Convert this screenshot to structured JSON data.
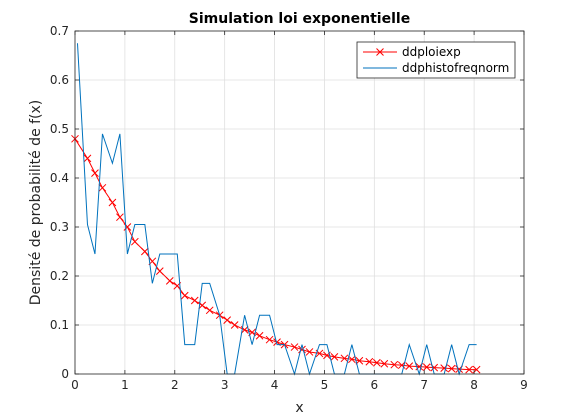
{
  "chart_data": {
    "type": "line",
    "title": "Simulation loi exponentielle",
    "xlabel": "x",
    "ylabel": "Densité de probabilité de f(x)",
    "xlim": [
      0,
      9
    ],
    "ylim": [
      0,
      0.7
    ],
    "xticks": [
      0,
      1,
      2,
      3,
      4,
      5,
      6,
      7,
      8,
      9
    ],
    "yticks": [
      0,
      0.1,
      0.2,
      0.3,
      0.4,
      0.5,
      0.6,
      0.7
    ],
    "grid": true,
    "legend_position": "top-right",
    "series": [
      {
        "name": "ddploiexp",
        "color": "#ff0000",
        "marker": "x",
        "x": [
          0,
          0.25,
          0.4,
          0.55,
          0.75,
          0.9,
          1.05,
          1.2,
          1.4,
          1.55,
          1.7,
          1.9,
          2.05,
          2.2,
          2.4,
          2.55,
          2.7,
          2.9,
          3.05,
          3.2,
          3.4,
          3.55,
          3.7,
          3.9,
          4.05,
          4.2,
          4.4,
          4.55,
          4.7,
          4.9,
          5.05,
          5.2,
          5.4,
          5.55,
          5.7,
          5.9,
          6.05,
          6.2,
          6.4,
          6.55,
          6.7,
          6.9,
          7.05,
          7.2,
          7.4,
          7.55,
          7.7,
          7.9,
          8.05
        ],
        "y": [
          0.48,
          0.44,
          0.41,
          0.38,
          0.35,
          0.32,
          0.3,
          0.27,
          0.25,
          0.23,
          0.21,
          0.19,
          0.18,
          0.16,
          0.15,
          0.14,
          0.13,
          0.12,
          0.11,
          0.1,
          0.09,
          0.085,
          0.078,
          0.07,
          0.065,
          0.06,
          0.055,
          0.05,
          0.045,
          0.042,
          0.038,
          0.035,
          0.032,
          0.03,
          0.027,
          0.025,
          0.023,
          0.021,
          0.019,
          0.018,
          0.016,
          0.015,
          0.014,
          0.013,
          0.012,
          0.011,
          0.01,
          0.009,
          0.009
        ]
      },
      {
        "name": "ddphistofreqnorm",
        "color": "#0072bd",
        "marker": "none",
        "x": [
          0.05,
          0.25,
          0.4,
          0.55,
          0.75,
          0.9,
          1.05,
          1.2,
          1.4,
          1.55,
          1.7,
          1.9,
          2.05,
          2.2,
          2.4,
          2.55,
          2.7,
          2.9,
          3.05,
          3.2,
          3.4,
          3.55,
          3.7,
          3.9,
          4.05,
          4.2,
          4.4,
          4.55,
          4.7,
          4.9,
          5.05,
          5.2,
          5.4,
          5.55,
          5.7,
          5.9,
          6.05,
          6.2,
          6.4,
          6.55,
          6.7,
          6.9,
          7.05,
          7.2,
          7.4,
          7.55,
          7.7,
          7.9,
          8.05
        ],
        "y": [
          0.675,
          0.305,
          0.245,
          0.49,
          0.43,
          0.49,
          0.245,
          0.305,
          0.305,
          0.185,
          0.245,
          0.245,
          0.245,
          0.06,
          0.06,
          0.185,
          0.185,
          0.12,
          0.0,
          0.0,
          0.12,
          0.06,
          0.12,
          0.12,
          0.06,
          0.06,
          0.0,
          0.06,
          0.0,
          0.06,
          0.06,
          0.0,
          0.0,
          0.06,
          0.0,
          0.0,
          0.0,
          0.0,
          0.0,
          0.0,
          0.06,
          0.0,
          0.06,
          0.0,
          0.0,
          0.06,
          0.0,
          0.06,
          0.06
        ]
      }
    ]
  }
}
